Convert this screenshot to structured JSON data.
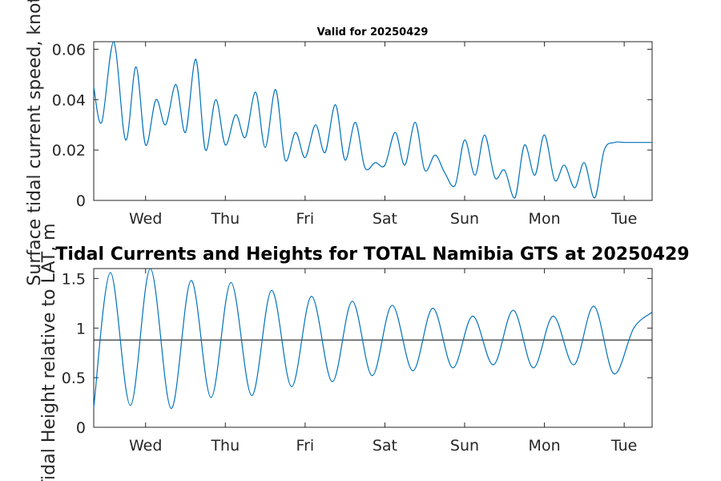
{
  "chart_data": [
    {
      "type": "line",
      "title": "Valid for 20250429",
      "ylabel": "Surface tidal current speed, knots",
      "xlabel": "",
      "x_range_days": [
        0,
        7.0
      ],
      "x_tick_days": [
        0.65,
        1.65,
        2.65,
        3.65,
        4.65,
        5.65,
        6.65
      ],
      "x_tick_labels": [
        "Wed",
        "Thu",
        "Fri",
        "Sat",
        "Sun",
        "Mon",
        "Tue"
      ],
      "ylim": [
        0,
        0.063
      ],
      "y_ticks": [
        0,
        0.02,
        0.04,
        0.06
      ],
      "y_tick_labels": [
        "0",
        "0.02",
        "0.04",
        "0.06"
      ],
      "grid": false,
      "color": "#0072BD",
      "series": [
        {
          "x": [
            0,
            0.1,
            0.25,
            0.4,
            0.53,
            0.65,
            0.78,
            0.9,
            1.03,
            1.15,
            1.28,
            1.4,
            1.53,
            1.65,
            1.78,
            1.9,
            2.03,
            2.15,
            2.28,
            2.4,
            2.53,
            2.65,
            2.78,
            2.9,
            3.03,
            3.15,
            3.28,
            3.4,
            3.53,
            3.65,
            3.78,
            3.9,
            4.03,
            4.15,
            4.28,
            4.4,
            4.53,
            4.65,
            4.78,
            4.9,
            5.03,
            5.15,
            5.28,
            5.4,
            5.53,
            5.65,
            5.78,
            5.9,
            6.03,
            6.15,
            6.28,
            6.4,
            6.53,
            6.65,
            6.78,
            6.9,
            7.0
          ],
          "y": [
            0.045,
            0.031,
            0.063,
            0.024,
            0.053,
            0.022,
            0.04,
            0.03,
            0.046,
            0.027,
            0.056,
            0.02,
            0.04,
            0.022,
            0.034,
            0.025,
            0.043,
            0.021,
            0.044,
            0.016,
            0.027,
            0.017,
            0.03,
            0.019,
            0.038,
            0.016,
            0.031,
            0.013,
            0.015,
            0.014,
            0.027,
            0.014,
            0.031,
            0.012,
            0.018,
            0.011,
            0.006,
            0.024,
            0.01,
            0.026,
            0.009,
            0.012,
            0.001,
            0.022,
            0.01,
            0.026,
            0.008,
            0.014,
            0.005,
            0.015,
            0.001,
            0.02,
            0.023,
            0.023,
            0.023,
            0.023,
            0.023
          ]
        }
      ]
    },
    {
      "type": "line",
      "title": "Tidal Currents and Heights for TOTAL Namibia GTS at 20250429",
      "ylabel": "Tidal Height relative to LAT, m",
      "xlabel": "",
      "x_range_days": [
        0,
        7.0
      ],
      "x_tick_days": [
        0.65,
        1.65,
        2.65,
        3.65,
        4.65,
        5.65,
        6.65
      ],
      "x_tick_labels": [
        "Wed",
        "Thu",
        "Fri",
        "Sat",
        "Sun",
        "Mon",
        "Tue"
      ],
      "ylim": [
        0,
        1.6
      ],
      "y_ticks": [
        0,
        0.5,
        1,
        1.5
      ],
      "y_tick_labels": [
        "0",
        "0.5",
        "1",
        "1.5"
      ],
      "grid": false,
      "reference_line_y": 0.88,
      "color": "#0072BD",
      "series": [
        {
          "x": [
            0,
            0.21,
            0.46,
            0.71,
            0.97,
            1.22,
            1.47,
            1.72,
            1.98,
            2.23,
            2.48,
            2.73,
            2.99,
            3.24,
            3.49,
            3.74,
            4.0,
            4.25,
            4.5,
            4.75,
            5.01,
            5.26,
            5.51,
            5.76,
            6.02,
            6.27,
            6.52,
            6.77,
            7.0
          ],
          "y": [
            0.2,
            1.56,
            0.22,
            1.6,
            0.19,
            1.48,
            0.3,
            1.46,
            0.32,
            1.38,
            0.41,
            1.32,
            0.46,
            1.27,
            0.52,
            1.23,
            0.57,
            1.2,
            0.6,
            1.12,
            0.63,
            1.18,
            0.6,
            1.12,
            0.63,
            1.22,
            0.54,
            1.0,
            1.16
          ]
        }
      ]
    }
  ]
}
